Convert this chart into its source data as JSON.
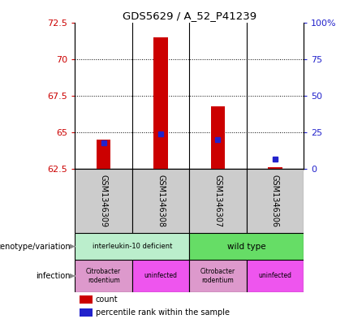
{
  "title": "GDS5629 / A_52_P41239",
  "samples": [
    "GSM1346309",
    "GSM1346308",
    "GSM1346307",
    "GSM1346306"
  ],
  "count_values": [
    64.5,
    71.5,
    66.8,
    62.65
  ],
  "percentile_values": [
    18,
    24,
    20,
    7
  ],
  "ylim_left": [
    62.5,
    72.5
  ],
  "yticks_left": [
    62.5,
    65.0,
    67.5,
    70.0,
    72.5
  ],
  "yticks_right": [
    0,
    25,
    50,
    75,
    100
  ],
  "ytick_labels_left": [
    "62.5",
    "65",
    "67.5",
    "70",
    "72.5"
  ],
  "ytick_labels_right": [
    "0",
    "25",
    "50",
    "75",
    "100%"
  ],
  "bar_color": "#cc0000",
  "dot_color": "#2222cc",
  "genotype1_color": "#bbeecc",
  "genotype2_color": "#66dd66",
  "infection1_color": "#dd99cc",
  "infection2_color": "#ee55ee",
  "legend_count_color": "#cc0000",
  "legend_dot_color": "#2222cc",
  "left_label_color": "#cc0000",
  "right_label_color": "#2222cc",
  "base_value": 62.5,
  "bar_width": 0.25,
  "x_positions": [
    0.5,
    1.5,
    2.5,
    3.5
  ]
}
